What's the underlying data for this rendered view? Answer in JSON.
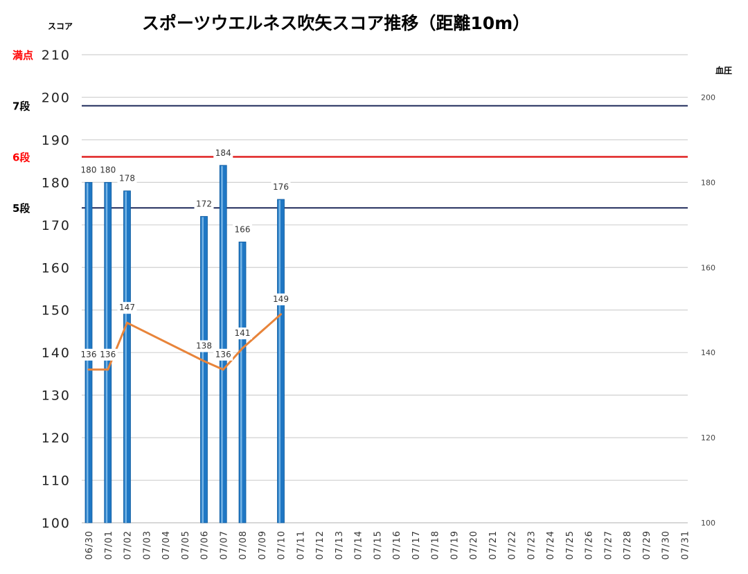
{
  "chart_data": {
    "type": "bar",
    "title": "スポーツウエルネス吹矢スコア推移（距離10m）",
    "ylabel": "スコア",
    "y2label": "血圧",
    "ylim": [
      100,
      210
    ],
    "y2lim": [
      100,
      210
    ],
    "yticks": [
      "100",
      "110",
      "120",
      "130",
      "140",
      "150",
      "160",
      "170",
      "180",
      "190",
      "200",
      "210"
    ],
    "y2ticks": [
      "100",
      "120",
      "140",
      "160",
      "180",
      "200"
    ],
    "categories": [
      "06/30",
      "07/01",
      "07/02",
      "07/03",
      "07/04",
      "07/05",
      "07/06",
      "07/07",
      "07/08",
      "07/09",
      "07/10",
      "07/11",
      "07/12",
      "07/13",
      "07/14",
      "07/15",
      "07/16",
      "07/17",
      "07/18",
      "07/19",
      "07/20",
      "07/21",
      "07/22",
      "07/23",
      "07/24",
      "07/25",
      "07/26",
      "07/27",
      "07/28",
      "07/29",
      "07/30",
      "07/31"
    ],
    "series": [
      {
        "type": "bar",
        "color": "#1f77c4",
        "values": [
          180,
          180,
          178,
          null,
          null,
          null,
          172,
          184,
          166,
          null,
          176,
          null,
          null,
          null,
          null,
          null,
          null,
          null,
          null,
          null,
          null,
          null,
          null,
          null,
          null,
          null,
          null,
          null,
          null,
          null,
          null,
          null
        ]
      },
      {
        "type": "line",
        "axis": "y2",
        "color": "#e8843a",
        "values": [
          136,
          136,
          147,
          null,
          null,
          null,
          138,
          136,
          141,
          null,
          149,
          null,
          null,
          null,
          null,
          null,
          null,
          null,
          null,
          null,
          null,
          null,
          null,
          null,
          null,
          null,
          null,
          null,
          null,
          null,
          null,
          null
        ]
      }
    ],
    "reference_lines": [
      {
        "label": "満点",
        "value": 210,
        "color": "#ff0000",
        "line": false
      },
      {
        "label": "7段",
        "value": 198,
        "color": "#000000",
        "line_color": "#1f2a5a"
      },
      {
        "label": "6段",
        "value": 186,
        "color": "#ff0000",
        "line_color": "#e02020"
      },
      {
        "label": "5段",
        "value": 174,
        "color": "#000000",
        "line_color": "#1f2a5a"
      }
    ],
    "grid": true,
    "legend": "none"
  }
}
